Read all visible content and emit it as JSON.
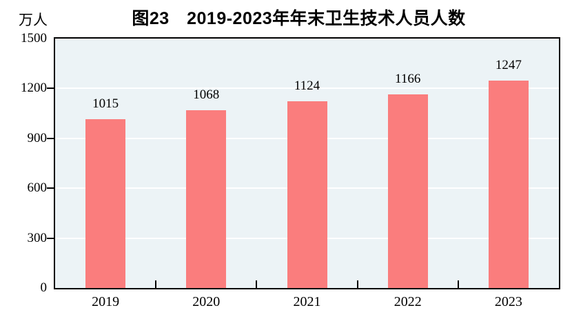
{
  "chart_data": {
    "type": "bar",
    "title": "图23　2019-2023年年末卫生技术人员人数",
    "unit_label": "万人",
    "categories": [
      "2019",
      "2020",
      "2021",
      "2022",
      "2023"
    ],
    "values": [
      1015,
      1068,
      1124,
      1166,
      1247
    ],
    "ylim": [
      0,
      1500
    ],
    "yticks": [
      0,
      300,
      600,
      900,
      1200,
      1500
    ],
    "grid": "horizontal-white",
    "legend_position": "none",
    "data_labels": "outside-end",
    "colors": {
      "bar_fill": "#FA7D7D",
      "plot_background": "#ECF3F6",
      "gridline": "#FFFFFF",
      "axis": "#000000",
      "text": "#000000",
      "page_background": "#FFFFFF"
    }
  }
}
